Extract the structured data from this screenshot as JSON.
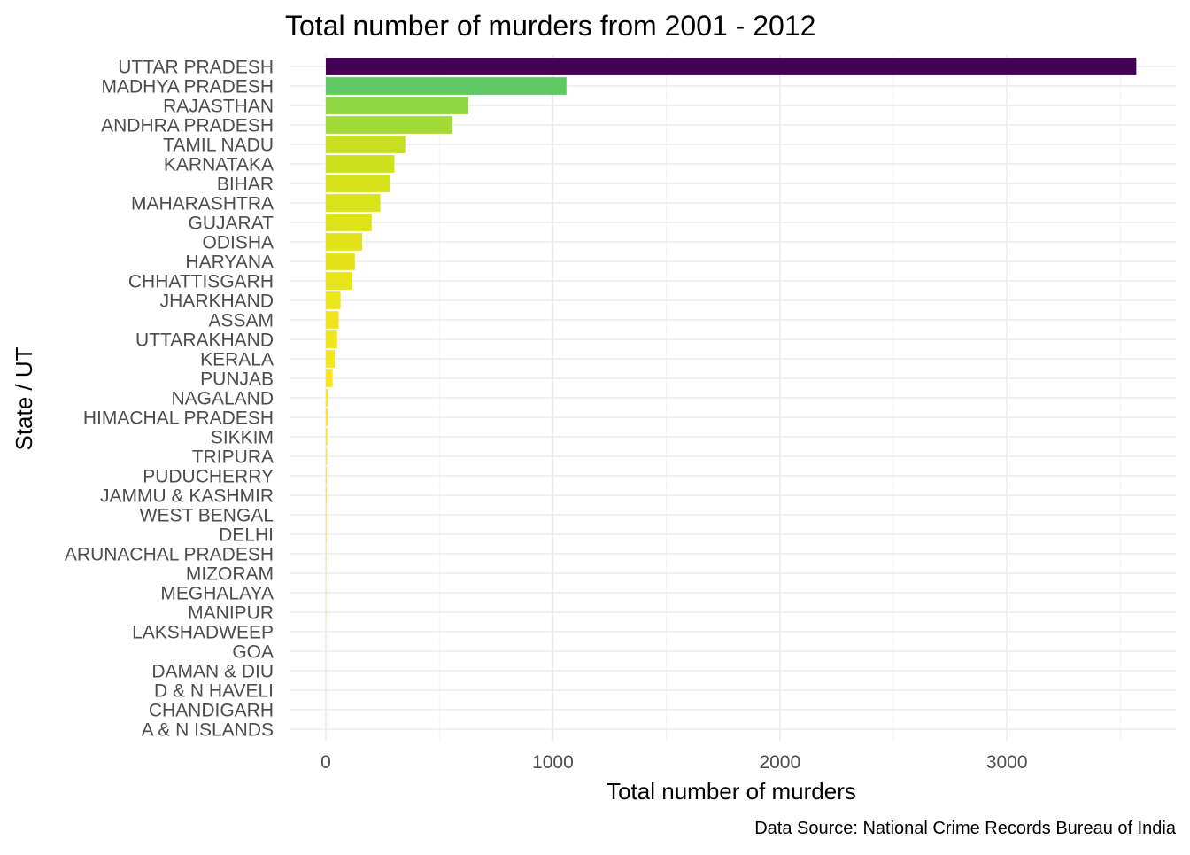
{
  "chart_data": {
    "type": "bar",
    "orientation": "horizontal",
    "title": "Total number of murders from 2001 - 2012",
    "xlabel": "Total number of murders",
    "ylabel": "State / UT",
    "caption": "Data Source: National Crime Records Bureau of India",
    "xlim": [
      0,
      3570
    ],
    "xticks": [
      0,
      1000,
      2000,
      3000
    ],
    "xtick_labels": [
      "0",
      "1000",
      "2000",
      "3000"
    ],
    "grid": true,
    "legend": "none",
    "colormap": "viridis (darker = higher value)",
    "categories": [
      "UTTAR PRADESH",
      "MADHYA PRADESH",
      "RAJASTHAN",
      "ANDHRA PRADESH",
      "TAMIL NADU",
      "KARNATAKA",
      "BIHAR",
      "MAHARASHTRA",
      "GUJARAT",
      "ODISHA",
      "HARYANA",
      "CHHATTISGARH",
      "JHARKHAND",
      "ASSAM",
      "UTTARAKHAND",
      "KERALA",
      "PUNJAB",
      "NAGALAND",
      "HIMACHAL PRADESH",
      "SIKKIM",
      "TRIPURA",
      "PUDUCHERRY",
      "JAMMU & KASHMIR",
      "WEST BENGAL",
      "DELHI",
      "ARUNACHAL PRADESH",
      "MIZORAM",
      "MEGHALAYA",
      "MANIPUR",
      "LAKSHADWEEP",
      "GOA",
      "DAMAN & DIU",
      "D & N HAVELI",
      "CHANDIGARH",
      "A & N ISLANDS"
    ],
    "values": [
      3570,
      1060,
      628,
      558,
      350,
      302,
      282,
      240,
      202,
      160,
      128,
      117,
      65,
      57,
      50,
      39,
      30,
      10,
      9,
      7,
      5,
      4,
      4,
      3,
      3,
      2,
      1,
      1,
      1,
      0,
      0,
      0,
      0,
      0,
      0
    ],
    "colors": [
      "#440154",
      "#5ec962",
      "#8fd744",
      "#a2da37",
      "#c6e021",
      "#cde11d",
      "#d5e21a",
      "#dae319",
      "#dde318",
      "#e2e418",
      "#e5e419",
      "#e7e419",
      "#eee51c",
      "#f0e51d",
      "#f1e51d",
      "#f4e61e",
      "#f6e620",
      "#f9e721",
      "#f9e721",
      "#fae722",
      "#fbe723",
      "#fbe723",
      "#fbe723",
      "#fce724",
      "#fce724",
      "#fce724",
      "#fde725",
      "#fde725",
      "#fde725",
      "#fde725",
      "#fde725",
      "#fde725",
      "#fde725",
      "#fde725",
      "#fde725"
    ]
  }
}
